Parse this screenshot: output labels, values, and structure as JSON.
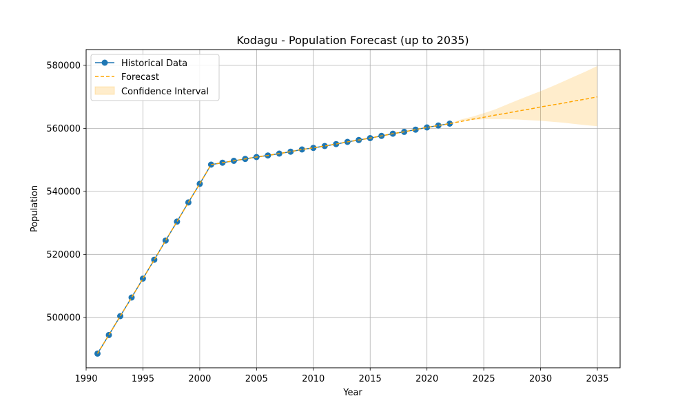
{
  "chart_data": {
    "type": "line",
    "title": "Kodagu - Population Forecast (up to 2035)",
    "xlabel": "Year",
    "ylabel": "Population",
    "xlim": [
      1990,
      2037
    ],
    "ylim": [
      484000,
      585000
    ],
    "xticks": [
      1990,
      1995,
      2000,
      2005,
      2010,
      2015,
      2020,
      2025,
      2030,
      2035
    ],
    "yticks": [
      500000,
      520000,
      540000,
      560000,
      580000
    ],
    "xtick_labels": [
      "1990",
      "1995",
      "2000",
      "2005",
      "2010",
      "2015",
      "2020",
      "2025",
      "2030",
      "2035"
    ],
    "ytick_labels": [
      "500000",
      "520000",
      "540000",
      "560000",
      "580000"
    ],
    "grid": true,
    "legend_position": "top-left",
    "legend": [
      "Historical Data",
      "Forecast",
      "Confidence Interval"
    ],
    "colors": {
      "historical_line": "#1f77b4",
      "historical_marker": "#1f77b4",
      "forecast": "#ffa500",
      "ci_fill": "#ffa500",
      "grid": "#b0b0b0"
    },
    "series": [
      {
        "name": "Historical Data",
        "x": [
          1991,
          1992,
          1993,
          1994,
          1995,
          1996,
          1997,
          1998,
          1999,
          2000,
          2001,
          2002,
          2003,
          2004,
          2005,
          2006,
          2007,
          2008,
          2009,
          2010,
          2011,
          2012,
          2013,
          2014,
          2015,
          2016,
          2017,
          2018,
          2019,
          2020,
          2021,
          2022
        ],
        "y": [
          488500,
          494400,
          500400,
          506300,
          512300,
          518300,
          524400,
          530400,
          536500,
          542400,
          548500,
          549100,
          549700,
          550300,
          550900,
          551400,
          552000,
          552600,
          553300,
          553800,
          554400,
          555000,
          555700,
          556300,
          556900,
          557600,
          558300,
          558900,
          559600,
          560300,
          560900,
          561500
        ]
      },
      {
        "name": "Forecast",
        "x": [
          1991,
          1992,
          1993,
          1994,
          1995,
          1996,
          1997,
          1998,
          1999,
          2000,
          2001,
          2002,
          2003,
          2004,
          2005,
          2006,
          2007,
          2008,
          2009,
          2010,
          2011,
          2012,
          2013,
          2014,
          2015,
          2016,
          2017,
          2018,
          2019,
          2020,
          2021,
          2022,
          2023,
          2024,
          2025,
          2026,
          2027,
          2028,
          2029,
          2030,
          2031,
          2032,
          2033,
          2034,
          2035
        ],
        "y": [
          488500,
          494400,
          500400,
          506300,
          512300,
          518300,
          524400,
          530400,
          536500,
          542400,
          548500,
          549100,
          549700,
          550300,
          550900,
          551400,
          552000,
          552600,
          553300,
          553800,
          554400,
          555000,
          555700,
          556300,
          556900,
          557600,
          558300,
          558900,
          559600,
          560300,
          560900,
          561500,
          562200,
          562900,
          563500,
          564200,
          564800,
          565500,
          566100,
          566800,
          567400,
          568000,
          568700,
          569300,
          570000
        ]
      },
      {
        "name": "Confidence Interval",
        "x": [
          2022,
          2023,
          2024,
          2025,
          2026,
          2027,
          2028,
          2029,
          2030,
          2031,
          2032,
          2033,
          2034,
          2035
        ],
        "lower": [
          561500,
          562300,
          562700,
          562900,
          562900,
          562900,
          562800,
          562600,
          562400,
          562100,
          561800,
          561400,
          561000,
          560700
        ],
        "upper": [
          561500,
          562800,
          563700,
          564800,
          566000,
          567500,
          569000,
          570400,
          571800,
          573300,
          574900,
          576500,
          578100,
          579800
        ]
      }
    ]
  }
}
